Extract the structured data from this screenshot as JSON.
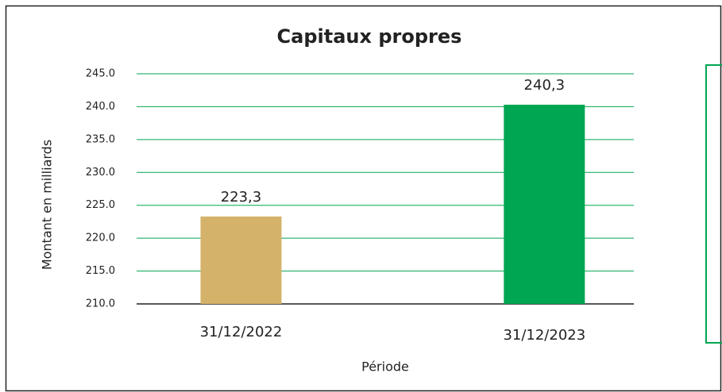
{
  "chart_data": {
    "type": "bar",
    "title": "Capitaux propres",
    "xlabel": "Période",
    "ylabel": "Montant en milliards",
    "categories": [
      "31/12/2022",
      "31/12/2023"
    ],
    "values": [
      223.3,
      240.3
    ],
    "value_labels": [
      "223,3",
      "240,3"
    ],
    "colors": [
      "#d4b26a",
      "#00a651"
    ],
    "ylim": [
      210,
      245
    ],
    "yticks": [
      {
        "value": 210,
        "label": "210.0"
      },
      {
        "value": 215,
        "label": "215.0"
      },
      {
        "value": 220,
        "label": "220.0"
      },
      {
        "value": 225,
        "label": "225.0"
      },
      {
        "value": 230,
        "label": "230.0"
      },
      {
        "value": 235,
        "label": "235.0"
      },
      {
        "value": 240,
        "label": "240.0"
      },
      {
        "value": 245,
        "label": "245.0"
      }
    ],
    "grid": true,
    "grid_color": "#00a651"
  }
}
